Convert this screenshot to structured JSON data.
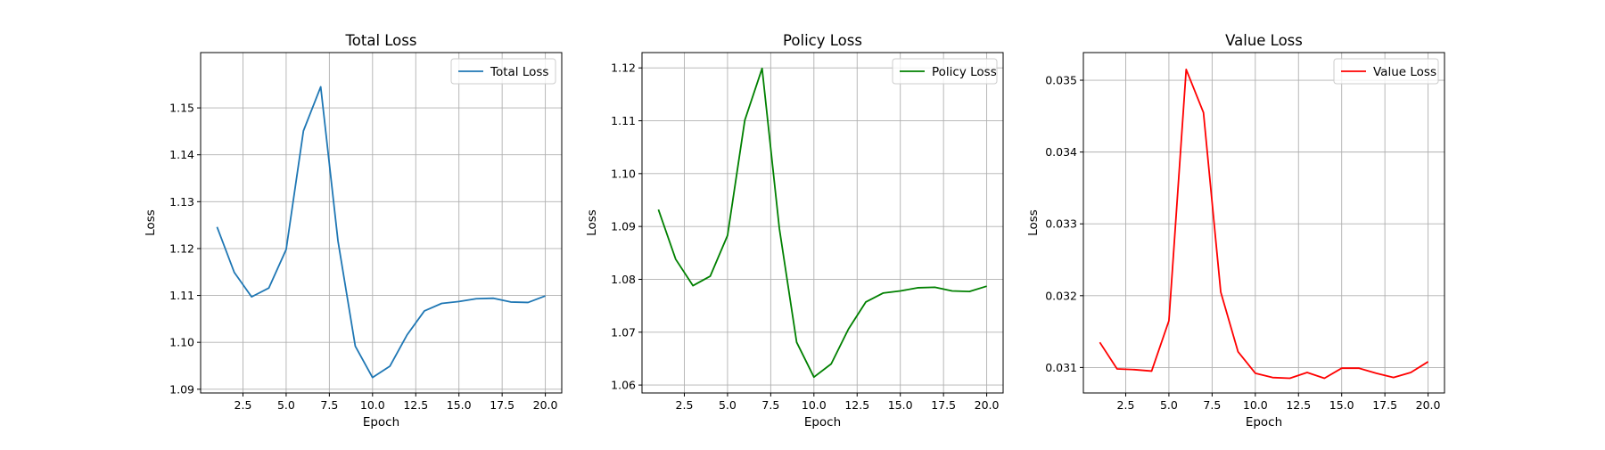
{
  "chart_data": [
    {
      "type": "line",
      "title": "Total Loss",
      "xlabel": "Epoch",
      "ylabel": "Loss",
      "xlim": [
        0.05,
        20.95
      ],
      "ylim": [
        1.0892,
        1.1618
      ],
      "xticks": [
        2.5,
        5.0,
        7.5,
        10.0,
        12.5,
        15.0,
        17.5,
        20.0
      ],
      "xtick_labels": [
        "2.5",
        "5.0",
        "7.5",
        "10.0",
        "12.5",
        "15.0",
        "17.5",
        "20.0"
      ],
      "yticks": [
        1.09,
        1.1,
        1.11,
        1.12,
        1.13,
        1.14,
        1.15
      ],
      "ytick_labels": [
        "1.09",
        "1.10",
        "1.11",
        "1.12",
        "1.13",
        "1.14",
        "1.15"
      ],
      "grid": true,
      "legend_position": "upper right",
      "series": [
        {
          "name": "Total Loss",
          "color": "#1f77b4",
          "x": [
            1,
            2,
            3,
            4,
            5,
            6,
            7,
            8,
            9,
            10,
            11,
            12,
            13,
            14,
            15,
            16,
            17,
            18,
            19,
            20
          ],
          "y": [
            1.1246,
            1.1149,
            1.1097,
            1.1116,
            1.1198,
            1.1451,
            1.1545,
            1.1216,
            1.0992,
            1.0925,
            1.0949,
            1.1016,
            1.1067,
            1.1083,
            1.1087,
            1.1093,
            1.1094,
            1.1086,
            1.1085,
            1.1099
          ]
        }
      ]
    },
    {
      "type": "line",
      "title": "Policy Loss",
      "xlabel": "Epoch",
      "ylabel": "Loss",
      "xlim": [
        0.05,
        20.95
      ],
      "ylim": [
        1.0585,
        1.1229
      ],
      "xticks": [
        2.5,
        5.0,
        7.5,
        10.0,
        12.5,
        15.0,
        17.5,
        20.0
      ],
      "xtick_labels": [
        "2.5",
        "5.0",
        "7.5",
        "10.0",
        "12.5",
        "15.0",
        "17.5",
        "20.0"
      ],
      "yticks": [
        1.06,
        1.07,
        1.08,
        1.09,
        1.1,
        1.11,
        1.12
      ],
      "ytick_labels": [
        "1.06",
        "1.07",
        "1.08",
        "1.09",
        "1.10",
        "1.11",
        "1.12"
      ],
      "grid": true,
      "legend_position": "upper right",
      "series": [
        {
          "name": "Policy Loss",
          "color": "#008000",
          "x": [
            1,
            2,
            3,
            4,
            5,
            6,
            7,
            8,
            9,
            10,
            11,
            12,
            13,
            14,
            15,
            16,
            17,
            18,
            19,
            20
          ],
          "y": [
            1.0932,
            1.0838,
            1.0788,
            1.0806,
            1.0883,
            1.1101,
            1.1199,
            1.0896,
            1.0681,
            1.0615,
            1.064,
            1.0706,
            1.0757,
            1.0774,
            1.0778,
            1.0784,
            1.0785,
            1.0778,
            1.0777,
            1.0787
          ]
        }
      ]
    },
    {
      "type": "line",
      "title": "Value Loss",
      "xlabel": "Epoch",
      "ylabel": "Loss",
      "xlim": [
        0.05,
        20.95
      ],
      "ylim": [
        0.030645,
        0.035385
      ],
      "xticks": [
        2.5,
        5.0,
        7.5,
        10.0,
        12.5,
        15.0,
        17.5,
        20.0
      ],
      "xtick_labels": [
        "2.5",
        "5.0",
        "7.5",
        "10.0",
        "12.5",
        "15.0",
        "17.5",
        "20.0"
      ],
      "yticks": [
        0.031,
        0.032,
        0.033,
        0.034,
        0.035
      ],
      "ytick_labels": [
        "0.031",
        "0.032",
        "0.033",
        "0.034",
        "0.035"
      ],
      "grid": true,
      "legend_position": "upper right",
      "series": [
        {
          "name": "Value Loss",
          "color": "#ff0000",
          "x": [
            1,
            2,
            3,
            4,
            5,
            6,
            7,
            8,
            9,
            10,
            11,
            12,
            13,
            14,
            15,
            16,
            17,
            18,
            19,
            20
          ],
          "y": [
            0.03135,
            0.03098,
            0.03097,
            0.03095,
            0.03165,
            0.03515,
            0.03455,
            0.03205,
            0.03122,
            0.03092,
            0.03086,
            0.03085,
            0.03093,
            0.03085,
            0.03099,
            0.03099,
            0.03092,
            0.03086,
            0.03093,
            0.03108
          ]
        }
      ]
    }
  ]
}
